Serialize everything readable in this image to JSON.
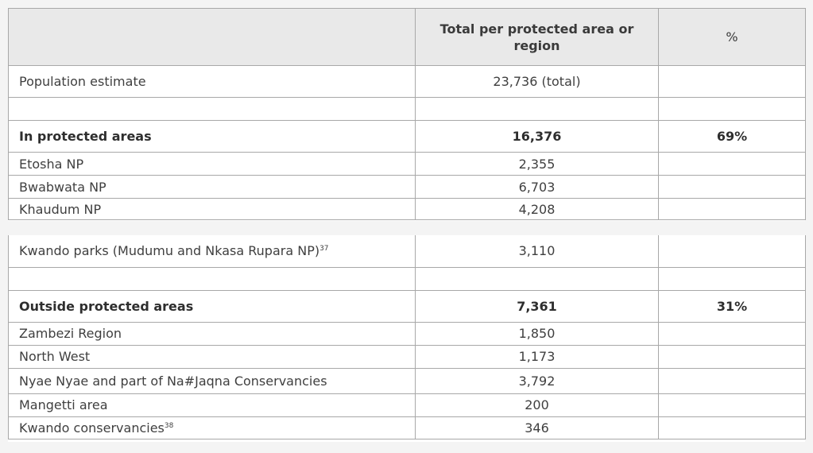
{
  "header": {
    "col1": "",
    "col2_line1": "Total per protected area or",
    "col2_line2": "region",
    "col3": "%"
  },
  "rows_part1": [
    {
      "label": "Population estimate",
      "total": "23,736 (total)",
      "pct": "",
      "bold": false
    },
    {
      "label": "",
      "total": "",
      "pct": "",
      "bold": false
    },
    {
      "label": "In protected areas",
      "total": "16,376",
      "pct": "69%",
      "bold": true
    },
    {
      "label": "Etosha NP",
      "total": "2,355",
      "pct": "",
      "bold": false
    },
    {
      "label": "Bwabwata NP",
      "total": "6,703",
      "pct": "",
      "bold": false
    },
    {
      "label": "Khaudum NP",
      "total": "4,208",
      "pct": "",
      "bold": false
    }
  ],
  "rows_part2": [
    {
      "label": "Kwando parks (Mudumu and Nkasa Rupara NP)",
      "sup": "37",
      "total": "3,110",
      "pct": "",
      "bold": false
    },
    {
      "label": "",
      "total": "",
      "pct": "",
      "bold": false
    },
    {
      "label": "Outside protected areas",
      "total": "7,361",
      "pct": "31%",
      "bold": true
    },
    {
      "label": "Zambezi Region",
      "total": "1,850",
      "pct": "",
      "bold": false
    },
    {
      "label": "North West",
      "total": "1,173",
      "pct": "",
      "bold": false
    },
    {
      "label": "Nyae Nyae and part of Na#Jaqna Conservancies",
      "total": "3,792",
      "pct": "",
      "bold": false
    },
    {
      "label": "Mangetti area",
      "total": "200",
      "pct": "",
      "bold": false
    },
    {
      "label": "Kwando conservancies",
      "sup": "38",
      "total": "346",
      "pct": "",
      "bold": false
    }
  ]
}
